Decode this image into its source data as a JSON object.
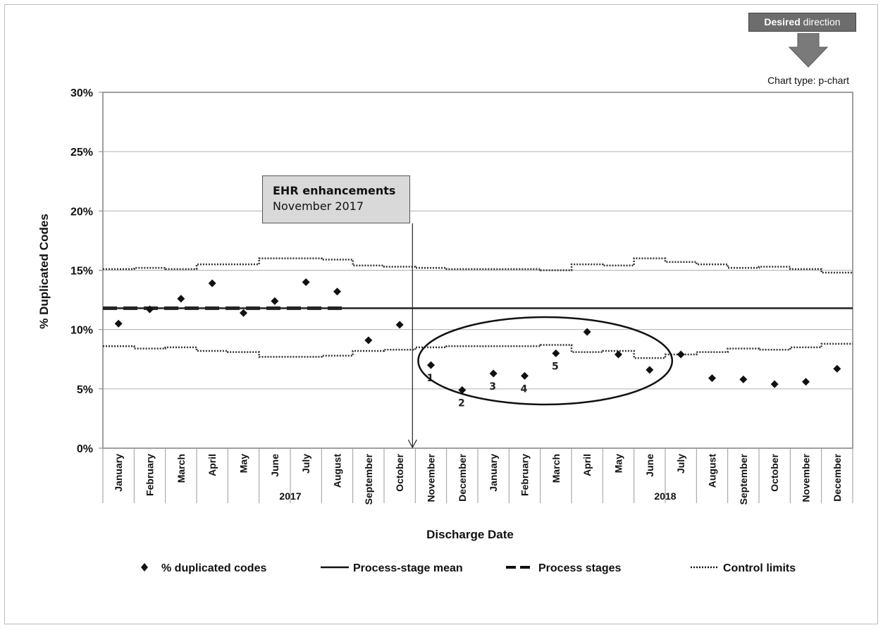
{
  "chart_data": {
    "type": "scatter",
    "chart_type_label": "Chart type: p-chart",
    "desired_direction": {
      "bold": "Desired",
      "rest": " direction",
      "arrow": "down"
    },
    "ylabel": "% Duplicated Codes",
    "xlabel": "Discharge Date",
    "ylim": [
      0,
      30
    ],
    "yticks": [
      "0%",
      "5%",
      "10%",
      "15%",
      "20%",
      "25%",
      "30%"
    ],
    "grid": true,
    "legend_position": "bottom",
    "categories": [
      "January",
      "February",
      "March",
      "April",
      "May",
      "June",
      "July",
      "August",
      "September",
      "October",
      "November",
      "December",
      "January",
      "February",
      "March",
      "April",
      "May",
      "June",
      "July",
      "August",
      "September",
      "October",
      "November",
      "December"
    ],
    "year_labels": [
      {
        "label": "2017",
        "from_index": 0,
        "to_index": 11
      },
      {
        "label": "2018",
        "from_index": 12,
        "to_index": 23
      }
    ],
    "series": [
      {
        "name": "% duplicated codes",
        "marker": "diamond",
        "values": [
          10.5,
          11.7,
          12.6,
          13.9,
          11.4,
          12.4,
          14.0,
          13.2,
          9.1,
          10.4,
          7.0,
          4.9,
          6.3,
          6.1,
          8.0,
          9.8,
          7.9,
          6.6,
          7.9,
          5.9,
          5.8,
          5.4,
          5.6,
          6.7
        ]
      },
      {
        "name": "Process-stage mean",
        "style": "solid",
        "value": 11.8
      },
      {
        "name": "Process stages",
        "style": "dashed",
        "value": 11.8,
        "from_index": 0,
        "to_index": 7
      },
      {
        "name": "Control limits",
        "style": "dotted",
        "upper": [
          15.1,
          15.2,
          15.1,
          15.5,
          15.5,
          16.0,
          16.0,
          15.9,
          15.4,
          15.3,
          15.2,
          15.1,
          15.1,
          15.1,
          15.0,
          15.5,
          15.4,
          16.0,
          15.7,
          15.5,
          15.2,
          15.3,
          15.1,
          14.8
        ],
        "lower": [
          8.6,
          8.4,
          8.5,
          8.2,
          8.1,
          7.7,
          7.7,
          7.8,
          8.2,
          8.3,
          8.5,
          8.6,
          8.6,
          8.6,
          8.7,
          8.1,
          8.2,
          7.6,
          7.9,
          8.1,
          8.4,
          8.3,
          8.5,
          8.8
        ]
      }
    ],
    "annotations": {
      "ehr_box": {
        "title": "EHR enhancements",
        "subtitle": "November 2017",
        "arrow_at_index": 10
      },
      "numbered_points": [
        {
          "label": "1",
          "index": 10
        },
        {
          "label": "2",
          "index": 11
        },
        {
          "label": "3",
          "index": 12
        },
        {
          "label": "4",
          "index": 13
        },
        {
          "label": "5",
          "index": 14
        }
      ],
      "ellipse": {
        "from_index": 10,
        "to_index": 17
      }
    },
    "legend": [
      {
        "label": "% duplicated codes",
        "symbol": "diamond"
      },
      {
        "label": "Process-stage mean",
        "symbol": "solid"
      },
      {
        "label": "Process stages",
        "symbol": "dashed"
      },
      {
        "label": "Control limits",
        "symbol": "dotted"
      }
    ]
  }
}
